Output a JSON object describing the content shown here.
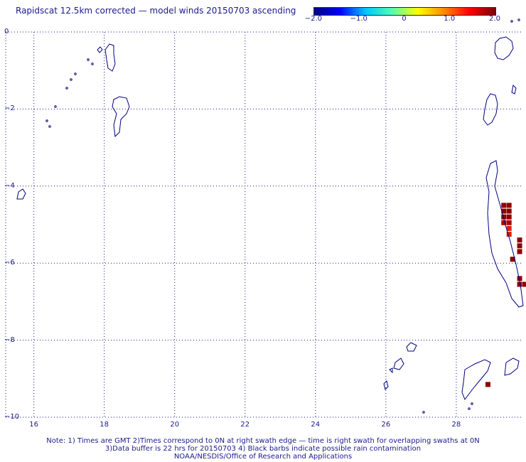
{
  "title": "Rapidscat 12.5km corrected — model winds 20150703 ascending",
  "colorbar": {
    "ticks": [
      "−2.0",
      "−1.0",
      "0",
      "1.0",
      "2.0"
    ],
    "range": [
      -2.0,
      2.0
    ],
    "colors": [
      "#00007f",
      "#0000ff",
      "#00c8ff",
      "#50ffb0",
      "#ffff00",
      "#ff8c00",
      "#ff0000",
      "#7f0000"
    ]
  },
  "map": {
    "x_ticks": [
      "16",
      "18",
      "20",
      "22",
      "24",
      "26",
      "28"
    ],
    "y_ticks": [
      "0",
      "−2",
      "−4",
      "−6",
      "−8",
      "−10"
    ],
    "lon_range": [
      15.2,
      29.9
    ],
    "lat_range": [
      -10,
      0
    ],
    "grid": true,
    "coast_color": "#000080",
    "grid_color": "#1a1a8c"
  },
  "chart_data": {
    "type": "heatmap",
    "title": "Rapidscat 12.5km corrected — model winds 20150703 ascending",
    "xlabel": "",
    "ylabel": "",
    "xlim": [
      15.2,
      29.9
    ],
    "ylim": [
      -10,
      0
    ],
    "value_range": [
      -2.0,
      2.0
    ],
    "cells": [
      {
        "lon": 29.35,
        "lat": -4.5,
        "value": 2.0
      },
      {
        "lon": 29.5,
        "lat": -4.5,
        "value": 2.0
      },
      {
        "lon": 29.35,
        "lat": -4.65,
        "value": 2.0
      },
      {
        "lon": 29.5,
        "lat": -4.65,
        "value": 2.0
      },
      {
        "lon": 29.35,
        "lat": -4.8,
        "value": 2.0
      },
      {
        "lon": 29.5,
        "lat": -4.8,
        "value": 2.0
      },
      {
        "lon": 29.35,
        "lat": -4.95,
        "value": 1.9
      },
      {
        "lon": 29.5,
        "lat": -4.95,
        "value": 1.9
      },
      {
        "lon": 29.5,
        "lat": -5.1,
        "value": 1.5
      },
      {
        "lon": 29.5,
        "lat": -5.25,
        "value": 1.4
      },
      {
        "lon": 29.8,
        "lat": -5.4,
        "value": 2.0
      },
      {
        "lon": 29.8,
        "lat": -5.55,
        "value": 2.0
      },
      {
        "lon": 29.8,
        "lat": -5.7,
        "value": 2.0
      },
      {
        "lon": 29.6,
        "lat": -5.9,
        "value": 2.0
      },
      {
        "lon": 29.8,
        "lat": -6.4,
        "value": 2.0
      },
      {
        "lon": 29.8,
        "lat": -6.55,
        "value": 2.0
      },
      {
        "lon": 29.95,
        "lat": -6.55,
        "value": 2.0
      },
      {
        "lon": 28.9,
        "lat": -9.15,
        "value": 2.0
      }
    ]
  },
  "notes": {
    "line1": "Note: 1) Times are GMT 2)Times correspond to 0N at right swath edge — time is right swath for overlapping swaths at 0N",
    "line2": "3)Data buffer is 22 hrs for 20150703 4) Black barbs indicate possible rain contamination",
    "line3": "NOAA/NESDIS/Office of Research and Applications"
  }
}
